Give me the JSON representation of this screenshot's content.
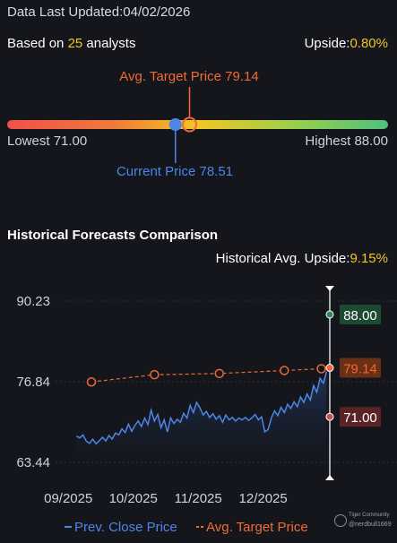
{
  "header": {
    "updated_label": "Data Last Updated:",
    "updated_date": "04/02/2026"
  },
  "summary": {
    "based_prefix": "Based on ",
    "analyst_count": "25",
    "based_suffix": " analysts",
    "upside_label": "Upside:",
    "upside_value": "0.80%"
  },
  "range_bar": {
    "avg_target_label": "Avg. Target Price 79.14",
    "lowest_label": "Lowest 71.00",
    "highest_label": "Highest 88.00",
    "current_label": "Current Price 78.51",
    "low": 71.0,
    "high": 88.0,
    "current": 78.51,
    "avg_target": 79.14,
    "gradient_colors": [
      "#f0504a",
      "#f07a3a",
      "#f3c623",
      "#9bcf4d",
      "#4fc27e"
    ]
  },
  "historical": {
    "title": "Historical Forecasts Comparison",
    "upside_label": "Historical Avg. Upside:",
    "upside_value": "9.15%"
  },
  "chart_data": {
    "type": "line",
    "ylim": [
      63.44,
      90.23
    ],
    "ytick_labels": [
      "90.23",
      "76.84",
      "63.44"
    ],
    "yticks": [
      90.23,
      76.84,
      63.44
    ],
    "xtick_labels": [
      "09/2025",
      "10/2025",
      "11/2025",
      "12/2025"
    ],
    "x_domain": [
      0,
      4.25
    ],
    "xticks": [
      0.5,
      1.5,
      2.5,
      3.5
    ],
    "grid": true,
    "legend_position": "bottom",
    "series": [
      {
        "name": "Prev. Close Price",
        "color": "#4c86e8",
        "style": "solid-area",
        "x": [
          0.35,
          0.4,
          0.45,
          0.5,
          0.55,
          0.6,
          0.65,
          0.7,
          0.75,
          0.8,
          0.85,
          0.9,
          0.95,
          1.0,
          1.05,
          1.1,
          1.15,
          1.2,
          1.25,
          1.3,
          1.35,
          1.4,
          1.45,
          1.5,
          1.55,
          1.6,
          1.65,
          1.7,
          1.75,
          1.8,
          1.85,
          1.9,
          1.95,
          2.0,
          2.05,
          2.1,
          2.15,
          2.2,
          2.25,
          2.3,
          2.35,
          2.4,
          2.45,
          2.5,
          2.55,
          2.6,
          2.65,
          2.7,
          2.75,
          2.8,
          2.85,
          2.9,
          2.95,
          3.0,
          3.05,
          3.1,
          3.15,
          3.2,
          3.25,
          3.3,
          3.35,
          3.4,
          3.45,
          3.5,
          3.55,
          3.6,
          3.65,
          3.7,
          3.75,
          3.8,
          3.85,
          3.9,
          3.95,
          4.0,
          4.05,
          4.1,
          4.15,
          4.2
        ],
        "values": [
          67.8,
          67.5,
          68.0,
          67.0,
          66.6,
          67.3,
          66.5,
          67.0,
          67.6,
          67.0,
          67.9,
          67.3,
          68.3,
          68.0,
          69.0,
          68.4,
          69.8,
          68.6,
          69.6,
          70.3,
          69.4,
          70.8,
          69.7,
          72.1,
          70.3,
          71.4,
          69.2,
          70.5,
          68.5,
          70.8,
          69.9,
          70.6,
          70.1,
          71.6,
          70.8,
          72.9,
          71.7,
          73.4,
          72.5,
          71.3,
          71.9,
          70.9,
          71.5,
          70.6,
          71.2,
          70.1,
          71.3,
          70.5,
          70.9,
          70.3,
          70.8,
          70.5,
          70.9,
          70.4,
          70.8,
          71.4,
          70.5,
          71.0,
          68.5,
          68.9,
          70.8,
          72.0,
          71.2,
          72.6,
          71.7,
          73.1,
          72.4,
          73.5,
          72.7,
          74.3,
          73.4,
          74.8,
          73.8,
          76.2,
          75.1,
          77.4,
          76.6,
          78.51
        ]
      },
      {
        "name": "Avg. Target Price",
        "color": "#f06a35",
        "style": "dashed-markers",
        "x": [
          0.58,
          1.55,
          2.55,
          3.55,
          4.12
        ],
        "values": [
          76.8,
          78.0,
          78.2,
          78.7,
          79.0
        ]
      }
    ],
    "markers": {
      "x": 4.25,
      "high": {
        "value": 88.0,
        "label": "88.00",
        "color": "#2f8a5a",
        "bg": "#1d4a33"
      },
      "avg": {
        "value": 79.14,
        "label": "79.14",
        "color": "#f06a35",
        "bg": "#6b2e16"
      },
      "low": {
        "value": 71.0,
        "label": "71.00",
        "color": "#c8504d",
        "bg": "#5a2325"
      }
    }
  },
  "watermark": {
    "line1": "Tiger Community",
    "line2": "@nerdbull1669"
  }
}
